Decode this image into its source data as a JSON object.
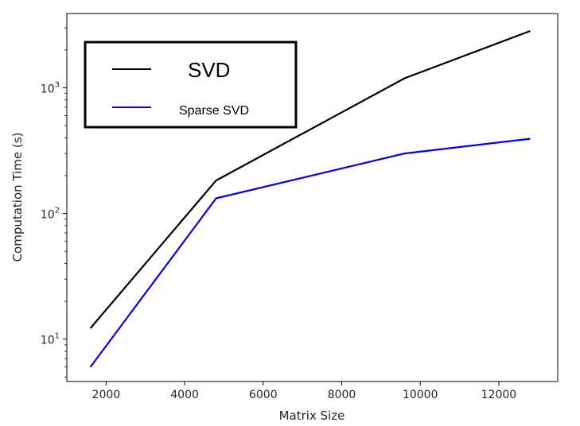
{
  "chart_data": {
    "type": "line",
    "xlabel": "Matrix Size",
    "ylabel": "Computation Time (s)",
    "yscale": "log",
    "xlim": [
      1000,
      13500
    ],
    "ylim": [
      4.6,
      3900
    ],
    "x_ticks": [
      2000,
      4000,
      6000,
      8000,
      10000,
      12000
    ],
    "x_tick_labels": [
      "2000",
      "4000",
      "6000",
      "8000",
      "10000",
      "12000"
    ],
    "y_ticks": [
      10,
      100,
      1000
    ],
    "y_tick_labels": [
      {
        "base": "10",
        "exp": "1"
      },
      {
        "base": "10",
        "exp": "2"
      },
      {
        "base": "10",
        "exp": "3"
      }
    ],
    "grid": false,
    "legend_position": "upper-left",
    "series": [
      {
        "name": "SVD",
        "color": "#000000",
        "x": [
          1600,
          4800,
          9600,
          12800
        ],
        "y": [
          12.2,
          183,
          1190,
          2830
        ]
      },
      {
        "name": "Sparse SVD",
        "color": "#0000ff",
        "x": [
          1600,
          4800,
          9600,
          12800
        ],
        "y": [
          6.0,
          132,
          300,
          393
        ]
      }
    ]
  }
}
